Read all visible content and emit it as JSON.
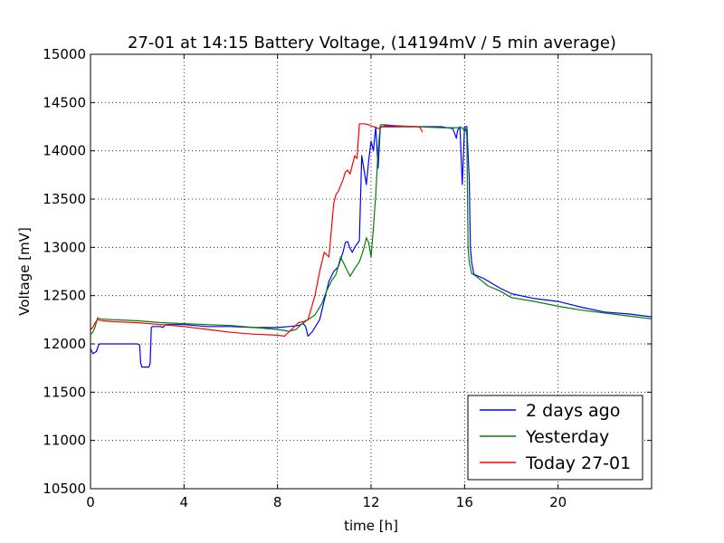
{
  "chart_data": {
    "type": "line",
    "title": "27-01 at 14:15 Battery Voltage, (14194mV / 5 min average)",
    "xlabel": "time [h]",
    "ylabel": "Voltage [mV]",
    "xlim": [
      0,
      24
    ],
    "ylim": [
      10500,
      15000
    ],
    "xticks": [
      0,
      4,
      8,
      12,
      16,
      20
    ],
    "yticks": [
      10500,
      11000,
      11500,
      12000,
      12500,
      13000,
      13500,
      14000,
      14500,
      15000
    ],
    "grid": true,
    "grid_style": "dotted",
    "legend_position": "lower-right",
    "series": [
      {
        "name": "2 days ago",
        "color": "#0000ff",
        "x": [
          0,
          0.1,
          0.25,
          0.35,
          0.4,
          1.0,
          1.5,
          2.0,
          2.1,
          2.15,
          2.2,
          2.3,
          2.5,
          2.55,
          2.6,
          2.65,
          3.0,
          3.1,
          3.2,
          4,
          5,
          6,
          7,
          8,
          8.5,
          8.9,
          9.0,
          9.1,
          9.2,
          9.3,
          9.5,
          9.8,
          10.0,
          10.2,
          10.4,
          10.6,
          10.8,
          10.9,
          11.0,
          11.1,
          11.2,
          11.3,
          11.5,
          11.6,
          11.7,
          11.8,
          11.9,
          12.0,
          12.1,
          12.2,
          12.3,
          12.4,
          13,
          14,
          15,
          15.5,
          15.65,
          15.7,
          15.8,
          15.9,
          16.0,
          16.1,
          16.2,
          16.25,
          16.3,
          16.4,
          16.8,
          17.5,
          18,
          19,
          20,
          21,
          22,
          23,
          24
        ],
        "y": [
          11950,
          11900,
          11920,
          11990,
          12000,
          12000,
          12000,
          12000,
          11990,
          11800,
          11760,
          11760,
          11760,
          11800,
          12170,
          12180,
          12180,
          12170,
          12200,
          12200,
          12180,
          12180,
          12170,
          12170,
          12180,
          12190,
          12200,
          12210,
          12180,
          12080,
          12130,
          12250,
          12450,
          12650,
          12750,
          12800,
          12950,
          13050,
          13060,
          12990,
          12950,
          13000,
          13070,
          13950,
          13800,
          13650,
          13900,
          14100,
          14000,
          14250,
          13820,
          14250,
          14250,
          14250,
          14250,
          14230,
          14130,
          14210,
          14250,
          13650,
          14250,
          14250,
          13700,
          13000,
          12850,
          12720,
          12680,
          12580,
          12520,
          12470,
          12440,
          12380,
          12330,
          12310,
          12280
        ]
      },
      {
        "name": "Yesterday",
        "color": "#008000",
        "x": [
          0,
          0.1,
          0.2,
          0.3,
          0.4,
          1,
          2,
          3,
          4,
          5,
          6,
          7,
          8,
          8.5,
          8.8,
          9.0,
          9.3,
          9.6,
          9.9,
          10.1,
          10.3,
          10.5,
          10.7,
          10.9,
          11.1,
          11.3,
          11.5,
          11.6,
          11.7,
          11.8,
          11.9,
          12.0,
          12.1,
          12.2,
          12.3,
          12.4,
          12.6,
          13,
          14,
          15,
          15.5,
          15.9,
          16.0,
          16.05,
          16.1,
          16.15,
          16.2,
          16.3,
          16.5,
          17,
          17.5,
          18,
          19,
          20,
          21,
          22,
          23,
          24
        ],
        "y": [
          12100,
          12120,
          12180,
          12270,
          12260,
          12250,
          12240,
          12220,
          12210,
          12200,
          12190,
          12170,
          12150,
          12130,
          12150,
          12200,
          12250,
          12300,
          12420,
          12550,
          12650,
          12720,
          12900,
          12800,
          12700,
          12780,
          12850,
          12920,
          13000,
          13100,
          13050,
          12900,
          13200,
          13550,
          14000,
          14270,
          14270,
          14260,
          14250,
          14240,
          14240,
          14240,
          14200,
          14230,
          14150,
          13000,
          12850,
          12730,
          12700,
          12600,
          12550,
          12480,
          12440,
          12390,
          12350,
          12320,
          12290,
          12260
        ]
      },
      {
        "name": "Today 27-01",
        "color": "#ff0000",
        "x": [
          0,
          0.1,
          0.2,
          0.3,
          0.5,
          1,
          2,
          3,
          4,
          5,
          6,
          7,
          8,
          8.3,
          8.6,
          8.9,
          9.1,
          9.3,
          9.6,
          9.8,
          10.0,
          10.2,
          10.4,
          10.5,
          10.6,
          10.8,
          10.9,
          11.0,
          11.1,
          11.2,
          11.3,
          11.4,
          11.5,
          11.7,
          11.9,
          12.1,
          12.3,
          12.6,
          13,
          13.5,
          14,
          14.1,
          14.2
        ],
        "y": [
          12150,
          12170,
          12220,
          12250,
          12240,
          12230,
          12220,
          12200,
          12180,
          12150,
          12120,
          12100,
          12090,
          12080,
          12150,
          12220,
          12230,
          12250,
          12500,
          12750,
          12950,
          12900,
          13450,
          13550,
          13580,
          13700,
          13780,
          13800,
          13760,
          13850,
          13950,
          13920,
          14280,
          14280,
          14270,
          14250,
          14230,
          14260,
          14260,
          14250,
          14250,
          14240,
          14194
        ]
      }
    ]
  }
}
